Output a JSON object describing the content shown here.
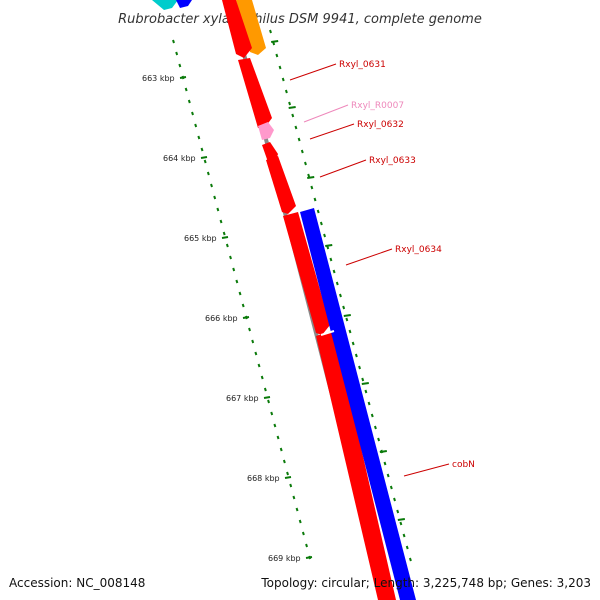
{
  "title": "Rubrobacter xylanophilus DSM 9941, complete genome",
  "footer": {
    "accession": "Accession: NC_008148",
    "summary": "Topology: circular; Length: 3,225,748 bp; Genes: 3,203"
  },
  "colors": {
    "cds_reverse": "#ff0000",
    "cds_forward": "#0000ff",
    "rna": "#ff99cc",
    "orange_feature": "#ff9900",
    "cyan_feature": "#00cccc",
    "backbone": "#888888",
    "gene_label": "#cc0000",
    "rna_label": "#ee88bb",
    "tick": "#0a7a0a"
  },
  "kbp_labels": [
    "663 kbp",
    "664 kbp",
    "665 kbp",
    "666 kbp",
    "667 kbp",
    "668 kbp",
    "669 kbp"
  ],
  "genes": [
    {
      "name": "Rxyl_0631",
      "type": "cds"
    },
    {
      "name": "Rxyl_R0007",
      "type": "rna"
    },
    {
      "name": "Rxyl_0632",
      "type": "cds"
    },
    {
      "name": "Rxyl_0633",
      "type": "cds"
    },
    {
      "name": "Rxyl_0634",
      "type": "cds"
    },
    {
      "name": "cobN",
      "type": "cds"
    }
  ]
}
